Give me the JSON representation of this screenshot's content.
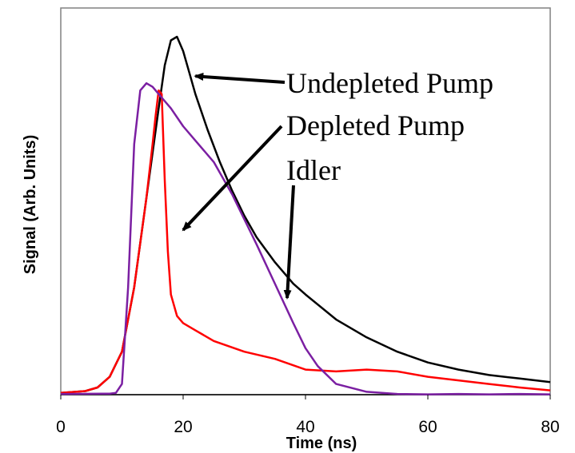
{
  "chart_data": {
    "type": "line",
    "title": "",
    "xlabel": "Time (ns)",
    "ylabel": "Signal (Arb. Units)",
    "xlim": [
      0,
      80
    ],
    "ylim": [
      0,
      1.0
    ],
    "x_ticks": [
      "0",
      "20",
      "40",
      "60",
      "80"
    ],
    "grid": false,
    "legend": "none",
    "series": [
      {
        "color": "#000000",
        "x": [
          0,
          4,
          6,
          8,
          10,
          12,
          14,
          16,
          17,
          18,
          19,
          20,
          21,
          22,
          24,
          26,
          28,
          30,
          32,
          35,
          38,
          40,
          45,
          50,
          55,
          60,
          65,
          70,
          75,
          80
        ],
        "y": [
          0.005,
          0.01,
          0.02,
          0.05,
          0.12,
          0.3,
          0.55,
          0.8,
          0.92,
          0.99,
          1.0,
          0.96,
          0.9,
          0.84,
          0.74,
          0.65,
          0.57,
          0.5,
          0.44,
          0.37,
          0.31,
          0.28,
          0.21,
          0.16,
          0.12,
          0.09,
          0.07,
          0.055,
          0.045,
          0.035
        ]
      },
      {
        "color": "#ff0000",
        "x": [
          0,
          4,
          6,
          8,
          10,
          12,
          14,
          15,
          15.5,
          16,
          16.5,
          17,
          17.5,
          18,
          19,
          20,
          22,
          25,
          30,
          35,
          40,
          45,
          50,
          55,
          60,
          65,
          70,
          75,
          80
        ],
        "y": [
          0.005,
          0.01,
          0.02,
          0.05,
          0.12,
          0.3,
          0.55,
          0.7,
          0.78,
          0.85,
          0.84,
          0.6,
          0.4,
          0.28,
          0.22,
          0.2,
          0.18,
          0.15,
          0.12,
          0.1,
          0.07,
          0.065,
          0.07,
          0.065,
          0.05,
          0.04,
          0.03,
          0.02,
          0.012
        ]
      },
      {
        "color": "#7b1fa2",
        "x": [
          0,
          8,
          9,
          10,
          11,
          12,
          13,
          14,
          15,
          16,
          18,
          20,
          22,
          25,
          28,
          30,
          32,
          35,
          38,
          40,
          42,
          45,
          50,
          55,
          60,
          65,
          70,
          75,
          80
        ],
        "y": [
          0.002,
          0.003,
          0.005,
          0.03,
          0.3,
          0.7,
          0.85,
          0.87,
          0.86,
          0.84,
          0.8,
          0.75,
          0.71,
          0.65,
          0.56,
          0.49,
          0.42,
          0.31,
          0.2,
          0.13,
          0.08,
          0.03,
          0.008,
          0.002,
          0.001,
          0.002,
          0.001,
          0.002,
          0.001
        ]
      }
    ],
    "annotations": [
      {
        "text": "Undepleted Pump",
        "arrow_to": [
          22,
          0.89
        ]
      },
      {
        "text": "Depleted Pump",
        "arrow_to": [
          20,
          0.46
        ]
      },
      {
        "text": "Idler",
        "arrow_to": [
          37,
          0.27
        ]
      }
    ]
  }
}
